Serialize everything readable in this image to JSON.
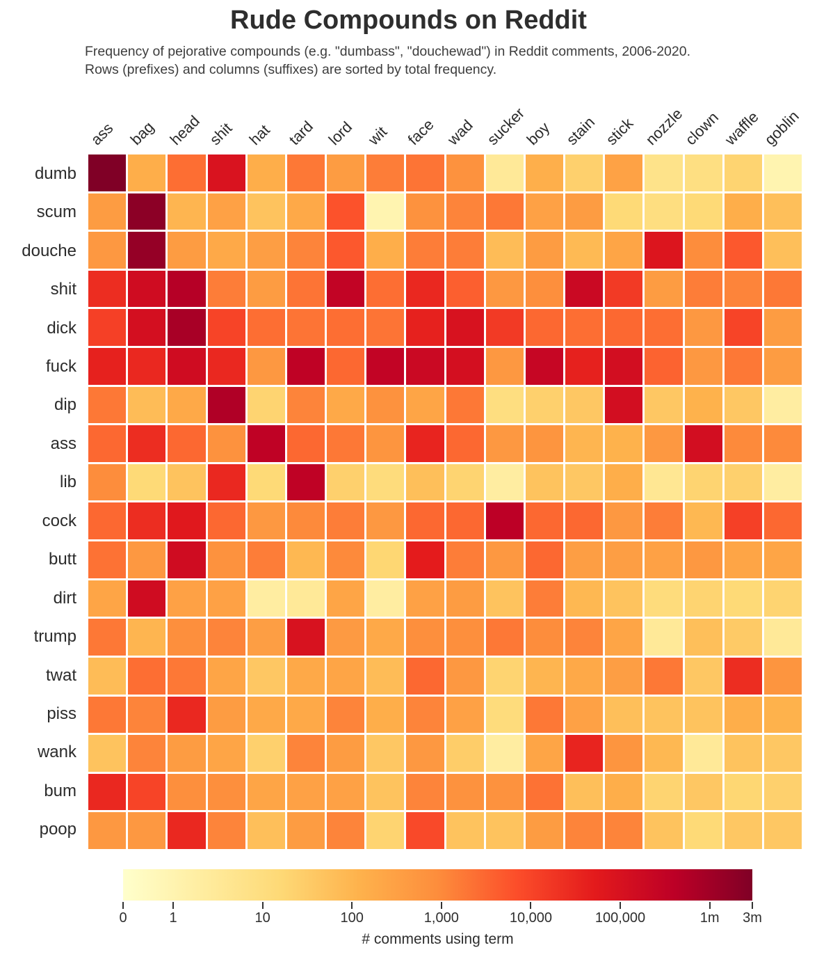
{
  "title": "Rude Compounds on Reddit",
  "subtitle_line1": "Frequency of pejorative compounds (e.g. \"dumbass\", \"douchewad\") in Reddit comments, 2006-2020.",
  "subtitle_line2": "Rows (prefixes) and columns (suffixes) are sorted by total frequency.",
  "chart_data": {
    "type": "heatmap",
    "columns": [
      "ass",
      "bag",
      "head",
      "shit",
      "hat",
      "tard",
      "lord",
      "wit",
      "face",
      "wad",
      "sucker",
      "boy",
      "stain",
      "stick",
      "nozzle",
      "clown",
      "waffle",
      "goblin"
    ],
    "rows": [
      "dumb",
      "scum",
      "douche",
      "shit",
      "dick",
      "fuck",
      "dip",
      "ass",
      "lib",
      "cock",
      "butt",
      "dirt",
      "trump",
      "twat",
      "piss",
      "wank",
      "bum",
      "poop"
    ],
    "values": [
      [
        3000000,
        150,
        2500,
        90000,
        150,
        1800,
        400,
        1500,
        2000,
        700,
        3,
        140,
        25,
        290,
        6,
        9,
        20,
        1
      ],
      [
        400,
        2000000,
        100,
        300,
        50,
        200,
        6000,
        1,
        700,
        1200,
        1800,
        300,
        400,
        15,
        10,
        15,
        150,
        60
      ],
      [
        500,
        1500000,
        400,
        200,
        350,
        1200,
        5000,
        150,
        1500,
        1500,
        70,
        400,
        80,
        250,
        75000,
        900,
        5000,
        60
      ],
      [
        25000,
        150000,
        500000,
        1500,
        400,
        2000,
        300000,
        2500,
        30000,
        4000,
        500,
        800,
        200000,
        15000,
        400,
        1500,
        1200,
        1800
      ],
      [
        12000,
        120000,
        800000,
        10000,
        2500,
        2000,
        2500,
        2000,
        40000,
        100000,
        15000,
        3000,
        2500,
        3000,
        2500,
        500,
        10000,
        400
      ],
      [
        40000,
        30000,
        150000,
        30000,
        500,
        350000,
        3000,
        300000,
        200000,
        120000,
        500,
        250000,
        40000,
        130000,
        3500,
        500,
        1800,
        400
      ],
      [
        1800,
        70,
        200,
        600000,
        20,
        1200,
        200,
        700,
        250,
        1800,
        10,
        25,
        40,
        130000,
        40,
        120,
        40,
        2
      ],
      [
        3000,
        25000,
        3000,
        700,
        350000,
        3000,
        1800,
        600,
        35000,
        3000,
        500,
        600,
        100,
        120,
        500,
        130000,
        1000,
        1000
      ],
      [
        900,
        15,
        50,
        30000,
        15,
        350000,
        25,
        12,
        60,
        20,
        2,
        50,
        40,
        150,
        4,
        20,
        25,
        2
      ],
      [
        3000,
        25000,
        60000,
        3000,
        500,
        1000,
        1500,
        500,
        3000,
        3000,
        400000,
        3000,
        3000,
        500,
        1500,
        90,
        12000,
        3000
      ],
      [
        2200,
        500,
        150000,
        700,
        1500,
        90,
        1000,
        18,
        50000,
        1500,
        500,
        3000,
        350,
        350,
        300,
        500,
        250,
        250
      ],
      [
        250,
        150000,
        300,
        300,
        2,
        3,
        250,
        2,
        300,
        400,
        50,
        1500,
        90,
        50,
        12,
        20,
        15,
        20
      ],
      [
        1800,
        100,
        800,
        1200,
        350,
        100000,
        450,
        200,
        800,
        800,
        1800,
        900,
        1200,
        250,
        3,
        60,
        35,
        3
      ],
      [
        70,
        2500,
        1800,
        250,
        40,
        200,
        250,
        70,
        3000,
        500,
        20,
        100,
        200,
        350,
        1800,
        40,
        25000,
        600
      ],
      [
        1800,
        1200,
        30000,
        400,
        200,
        200,
        1200,
        150,
        1200,
        300,
        12,
        1800,
        300,
        60,
        50,
        50,
        150,
        120
      ],
      [
        50,
        1200,
        400,
        250,
        25,
        1200,
        400,
        40,
        500,
        30,
        2,
        250,
        35000,
        600,
        90,
        3,
        50,
        40
      ],
      [
        30000,
        10000,
        800,
        800,
        250,
        300,
        300,
        50,
        1200,
        700,
        700,
        2200,
        60,
        150,
        20,
        40,
        18,
        25
      ],
      [
        500,
        500,
        30000,
        1200,
        60,
        400,
        1200,
        20,
        8500,
        50,
        50,
        400,
        1200,
        1200,
        50,
        15,
        40,
        40
      ]
    ],
    "colormap": [
      "#ffffcc",
      "#ffeda0",
      "#fed976",
      "#feb24c",
      "#fd8d3c",
      "#fc4e2a",
      "#e31a1c",
      "#bd0026",
      "#800026"
    ],
    "scale": {
      "type": "log",
      "zero_offset": 0.56,
      "max": 3000000
    },
    "legend": {
      "label": "# comments using term",
      "ticks": [
        {
          "label": "0",
          "value": 0
        },
        {
          "label": "1",
          "value": 1
        },
        {
          "label": "10",
          "value": 10
        },
        {
          "label": "100",
          "value": 100
        },
        {
          "label": "1,000",
          "value": 1000
        },
        {
          "label": "10,000",
          "value": 10000
        },
        {
          "label": "100,000",
          "value": 100000
        },
        {
          "label": "1m",
          "value": 1000000
        },
        {
          "label": "3m",
          "value": 3000000
        }
      ]
    }
  }
}
